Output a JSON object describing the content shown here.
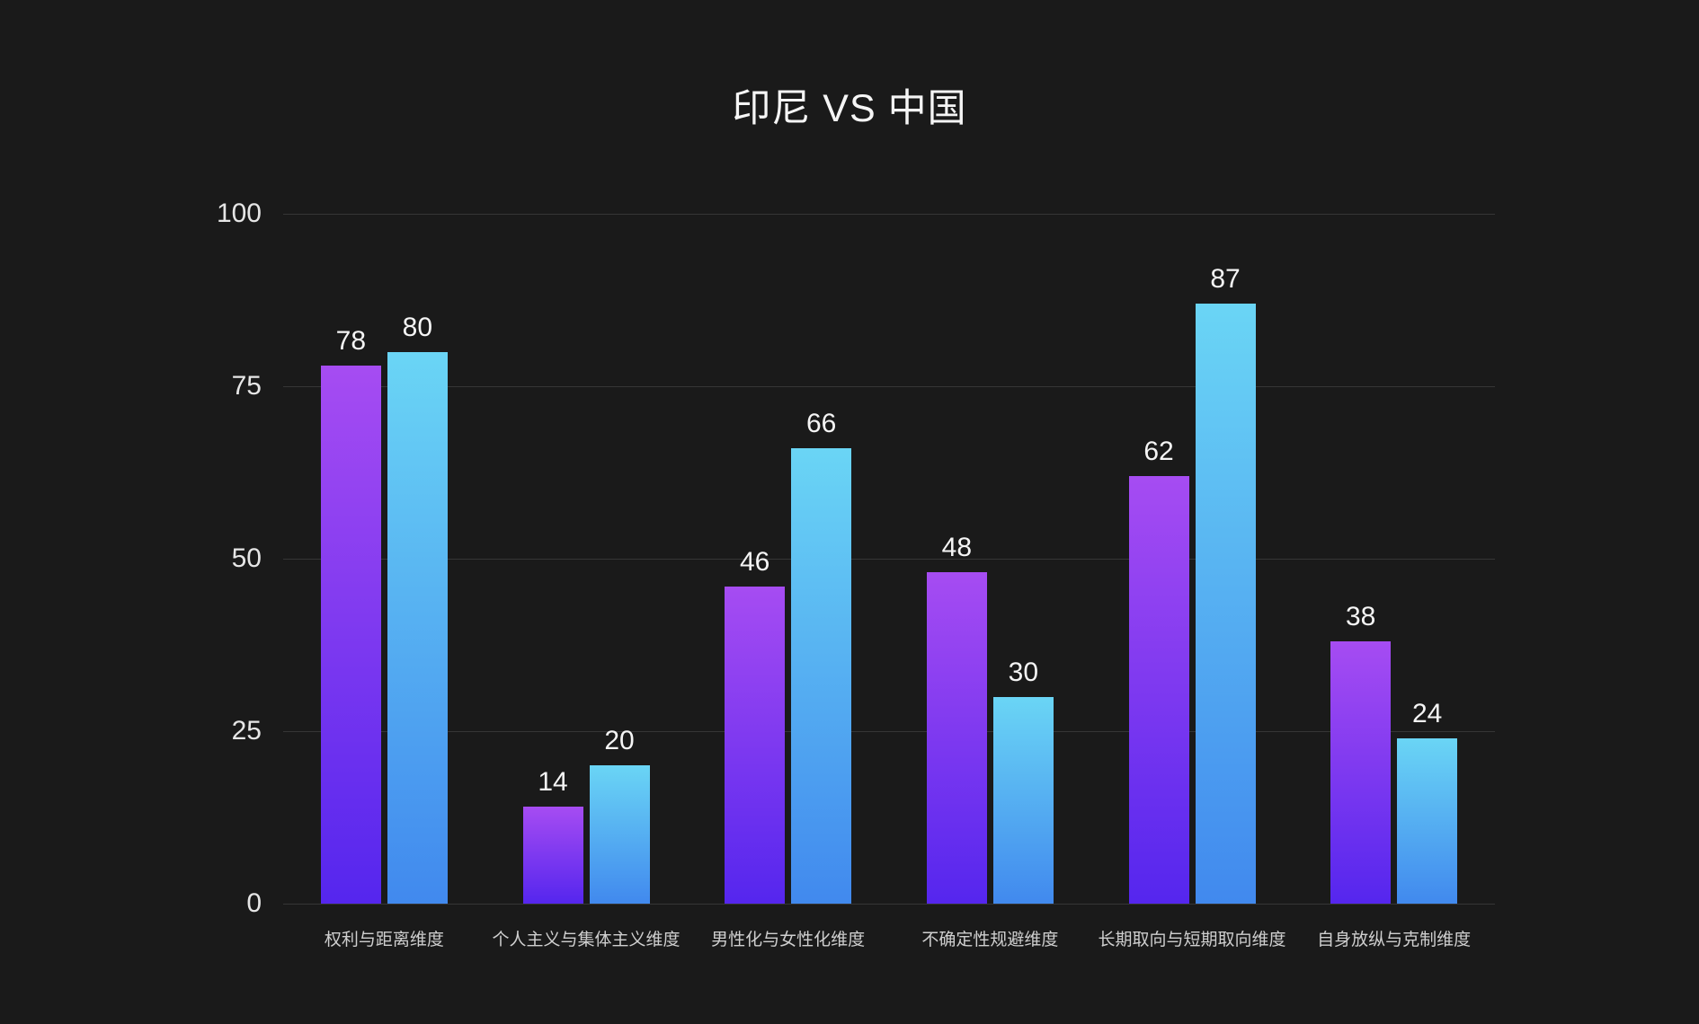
{
  "title": "印尼 VS 中国",
  "chart_data": {
    "type": "bar",
    "title": "印尼 VS 中国",
    "categories": [
      "权利与距离维度",
      "个人主义与集体主义维度",
      "男性化与女性化维度",
      "不确定性规避维度",
      "长期取向与短期取向维度",
      "自身放纵与克制维度"
    ],
    "series": [
      {
        "name": "印尼",
        "values": [
          78,
          14,
          46,
          48,
          62,
          38
        ],
        "color_top": "#a64cf2",
        "color_bottom": "#5526ee"
      },
      {
        "name": "中国",
        "values": [
          80,
          20,
          66,
          30,
          87,
          24
        ],
        "color_top": "#6ad5f5",
        "color_bottom": "#4189ee"
      }
    ],
    "ylim": [
      0,
      100
    ],
    "yticks": [
      0,
      25,
      50,
      75,
      100
    ],
    "grid": true,
    "legend_position": "none",
    "colors": {
      "background": "#1a1a1a",
      "gridline": "#363636",
      "y_axis_label": "#e6e6e6",
      "category_label": "#cfcfcf",
      "value_label": "#f5f5f5",
      "title": "#f5f5f5"
    }
  }
}
